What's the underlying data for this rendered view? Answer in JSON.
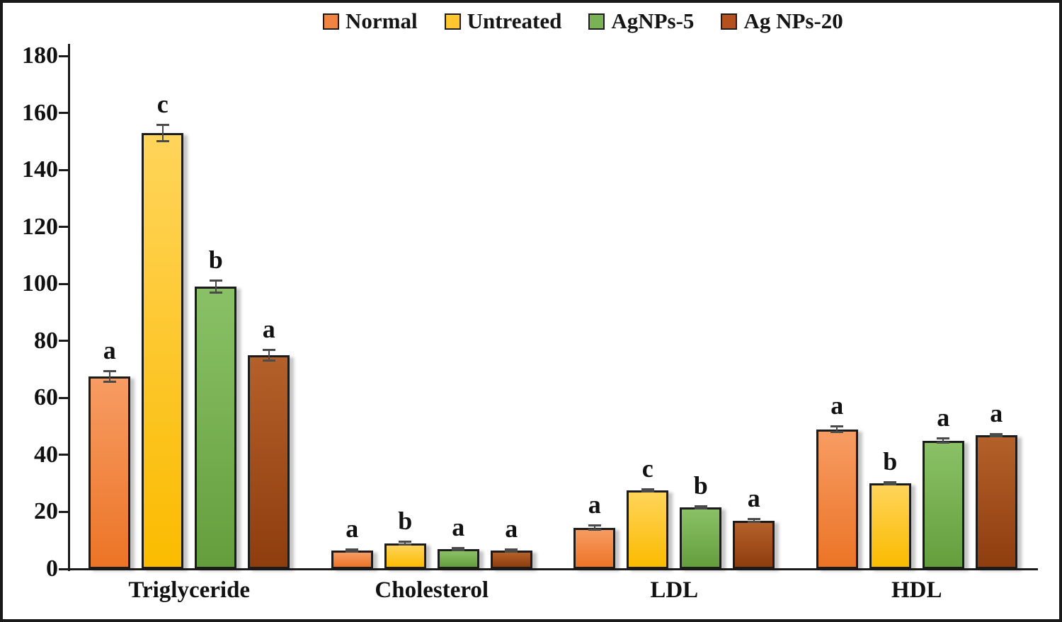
{
  "chart_data": {
    "type": "bar",
    "title": "",
    "xlabel": "",
    "ylabel": "",
    "categories": [
      "Triglyceride",
      "Cholesterol",
      "LDL",
      "HDL"
    ],
    "series": [
      {
        "name": "Normal",
        "legend_color": "#F08442",
        "fill_top": "#F79C63",
        "fill_bottom": "#EC7426",
        "values": [
          67.5,
          6.5,
          14.5,
          49
        ],
        "errors": [
          2,
          0.5,
          0.8,
          1.2
        ],
        "letters": [
          "a",
          "a",
          "a",
          "a"
        ]
      },
      {
        "name": "Untreated",
        "legend_color": "#FFC82E",
        "fill_top": "#FFD45A",
        "fill_bottom": "#FBBB00",
        "values": [
          153,
          9,
          27.5,
          30
        ],
        "errors": [
          3,
          0.6,
          0.5,
          0.5
        ],
        "letters": [
          "c",
          "b",
          "c",
          "b"
        ]
      },
      {
        "name": "AgNPs-5",
        "legend_color": "#79B356",
        "fill_top": "#8AC167",
        "fill_bottom": "#649E3C",
        "values": [
          99,
          7,
          21.5,
          45
        ],
        "errors": [
          2.2,
          0.5,
          0.5,
          0.9
        ],
        "letters": [
          "b",
          "a",
          "b",
          "a"
        ]
      },
      {
        "name": "Ag NPs-20",
        "legend_color": "#B5511F",
        "fill_top": "#B4602A",
        "fill_bottom": "#8E3D0E",
        "values": [
          75,
          6.5,
          17,
          47
        ],
        "errors": [
          2,
          0.5,
          0.6,
          0.5
        ],
        "letters": [
          "a",
          "a",
          "a",
          "a"
        ]
      }
    ],
    "ylim": [
      0,
      180
    ],
    "ytick_step": 20,
    "grid": false,
    "legend_position": "top",
    "axis_color": "#1a1a1a",
    "error_bar_color": "#4a4a4a"
  }
}
